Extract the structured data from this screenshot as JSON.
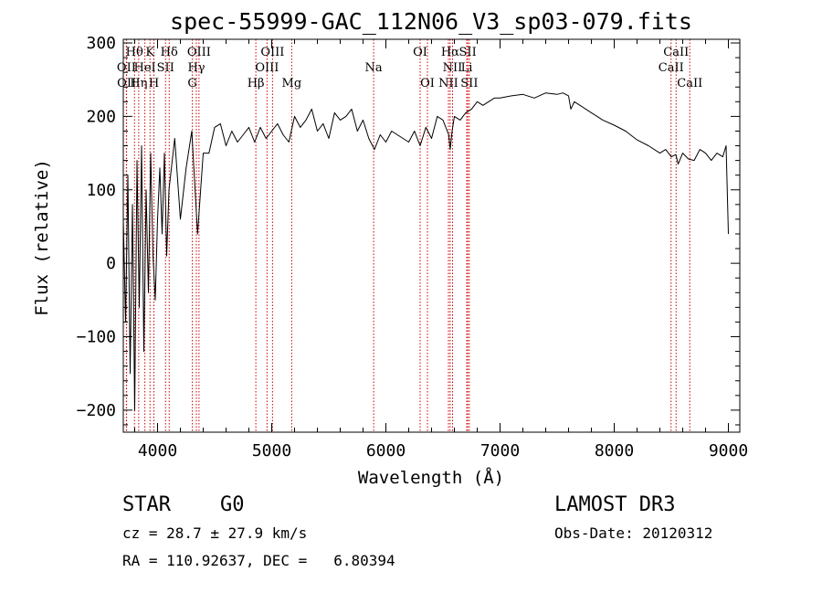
{
  "chart_data": {
    "type": "line",
    "title": "spec-55999-GAC_112N06_V3_sp03-079.fits",
    "xlabel": "Wavelength (Å)",
    "ylabel": "Flux (relative)",
    "xlim": [
      3700,
      9100
    ],
    "ylim": [
      -230,
      305
    ],
    "xticks": [
      4000,
      5000,
      6000,
      7000,
      8000,
      9000
    ],
    "yticks": [
      -200,
      -100,
      0,
      100,
      200,
      300
    ],
    "yticklabels": [
      "−200",
      "−100",
      "0",
      "100",
      "200",
      "300"
    ],
    "series": [
      {
        "name": "flux",
        "x": [
          3700,
          3720,
          3740,
          3760,
          3780,
          3800,
          3820,
          3840,
          3860,
          3880,
          3900,
          3920,
          3940,
          3960,
          3980,
          4000,
          4020,
          4040,
          4060,
          4080,
          4100,
          4150,
          4200,
          4250,
          4300,
          4350,
          4400,
          4450,
          4500,
          4550,
          4600,
          4650,
          4700,
          4750,
          4800,
          4850,
          4900,
          4950,
          5000,
          5050,
          5100,
          5150,
          5200,
          5250,
          5300,
          5350,
          5400,
          5450,
          5500,
          5550,
          5600,
          5650,
          5700,
          5750,
          5800,
          5850,
          5900,
          5950,
          6000,
          6050,
          6100,
          6150,
          6200,
          6250,
          6300,
          6350,
          6400,
          6450,
          6500,
          6550,
          6563,
          6580,
          6600,
          6650,
          6700,
          6750,
          6800,
          6850,
          6900,
          6950,
          7000,
          7100,
          7200,
          7300,
          7400,
          7500,
          7550,
          7600,
          7620,
          7650,
          7700,
          7800,
          7900,
          8000,
          8100,
          8200,
          8300,
          8400,
          8450,
          8500,
          8540,
          8560,
          8600,
          8650,
          8700,
          8750,
          8800,
          8850,
          8900,
          8950,
          8980,
          9000
        ],
        "y": [
          60,
          -80,
          120,
          -150,
          80,
          -200,
          140,
          -60,
          160,
          -120,
          100,
          -40,
          150,
          10,
          -50,
          60,
          130,
          40,
          150,
          10,
          100,
          170,
          60,
          130,
          180,
          40,
          150,
          150,
          185,
          190,
          160,
          180,
          165,
          175,
          185,
          165,
          185,
          170,
          180,
          190,
          175,
          165,
          200,
          185,
          195,
          210,
          180,
          190,
          170,
          205,
          195,
          200,
          210,
          180,
          195,
          170,
          155,
          175,
          165,
          180,
          175,
          170,
          165,
          180,
          160,
          185,
          170,
          200,
          195,
          175,
          155,
          180,
          200,
          195,
          205,
          210,
          220,
          215,
          220,
          225,
          225,
          228,
          230,
          225,
          232,
          230,
          232,
          228,
          210,
          220,
          215,
          205,
          195,
          188,
          180,
          168,
          160,
          150,
          155,
          145,
          148,
          135,
          150,
          142,
          140,
          155,
          150,
          140,
          150,
          145,
          160,
          40
        ]
      }
    ],
    "line_labels": [
      {
        "label": "Hθ",
        "x": 3798,
        "row": 1
      },
      {
        "label": "K",
        "x": 3934,
        "row": 1
      },
      {
        "label": "Hδ",
        "x": 4102,
        "row": 1
      },
      {
        "label": "OIII",
        "x": 4363,
        "row": 1
      },
      {
        "label": "OIII",
        "x": 5007,
        "row": 1
      },
      {
        "label": "OI",
        "x": 6300,
        "row": 1
      },
      {
        "label": "Hα",
        "x": 6563,
        "row": 1
      },
      {
        "label": "SII",
        "x": 6717,
        "row": 1
      },
      {
        "label": "CaII",
        "x": 8542,
        "row": 1
      },
      {
        "label": "OII",
        "x": 3727,
        "row": 2
      },
      {
        "label": "HeI",
        "x": 3889,
        "row": 2
      },
      {
        "label": "SII",
        "x": 4070,
        "row": 2
      },
      {
        "label": "Hγ",
        "x": 4340,
        "row": 2
      },
      {
        "label": "OIII",
        "x": 4959,
        "row": 2
      },
      {
        "label": "Na",
        "x": 5893,
        "row": 2
      },
      {
        "label": "NII",
        "x": 6584,
        "row": 2
      },
      {
        "label": "Li",
        "x": 6708,
        "row": 2
      },
      {
        "label": "CaII",
        "x": 8498,
        "row": 2
      },
      {
        "label": "OII",
        "x": 3729,
        "row": 3
      },
      {
        "label": "Hη",
        "x": 3835,
        "row": 3
      },
      {
        "label": "H",
        "x": 3968,
        "row": 3
      },
      {
        "label": "G",
        "x": 4305,
        "row": 3
      },
      {
        "label": "Hβ",
        "x": 4861,
        "row": 3
      },
      {
        "label": "Mg",
        "x": 5175,
        "row": 3
      },
      {
        "label": "OI",
        "x": 6364,
        "row": 3
      },
      {
        "label": "NII",
        "x": 6548,
        "row": 3
      },
      {
        "label": "SII",
        "x": 6731,
        "row": 3
      },
      {
        "label": "CaII",
        "x": 8662,
        "row": 3
      }
    ],
    "line_positions": [
      3727,
      3729,
      3798,
      3835,
      3889,
      3934,
      3968,
      4070,
      4102,
      4305,
      4340,
      4363,
      4861,
      4959,
      5007,
      5175,
      5893,
      6300,
      6364,
      6548,
      6563,
      6584,
      6708,
      6717,
      6731,
      8498,
      8542,
      8662
    ],
    "line_color": "#cc0000"
  },
  "info": {
    "object_class": "STAR",
    "subclass": "G0",
    "survey": "LAMOST DR3",
    "cz": "cz = 28.7 ± 27.9 km/s",
    "obs_date": "Obs-Date: 20120312",
    "coords": "RA = 110.92637, DEC =   6.80394"
  }
}
